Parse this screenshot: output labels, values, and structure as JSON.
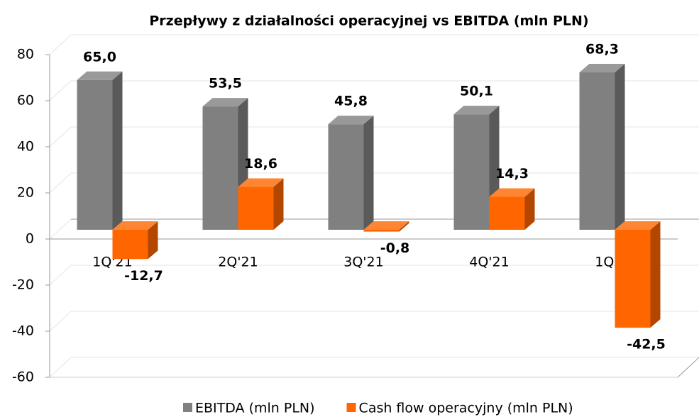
{
  "chart_data": {
    "type": "bar3d",
    "title": "Przepływy z działalności operacyjnej vs EBITDA (mln PLN)",
    "categories": [
      "1Q'21",
      "2Q'21",
      "3Q'21",
      "4Q'21",
      "1Q'22"
    ],
    "series": [
      {
        "name": "EBITDA (mln PLN)",
        "color": "#808080",
        "values": [
          65.0,
          53.5,
          45.8,
          50.1,
          68.3
        ],
        "value_labels": [
          "65,0",
          "53,5",
          "45,8",
          "50,1",
          "68,3"
        ]
      },
      {
        "name": "Cash flow operacyjny (mln PLN)",
        "color": "#ff6600",
        "values": [
          -12.7,
          18.6,
          -0.8,
          14.3,
          -42.5
        ],
        "value_labels": [
          "-12,7",
          "18,6",
          "-0,8",
          "14,3",
          "-42,5"
        ]
      }
    ],
    "ylim": [
      -60,
      80
    ],
    "yticks": [
      -60,
      -40,
      -20,
      0,
      20,
      40,
      60,
      80
    ],
    "grid": true,
    "legend": "bottom"
  }
}
